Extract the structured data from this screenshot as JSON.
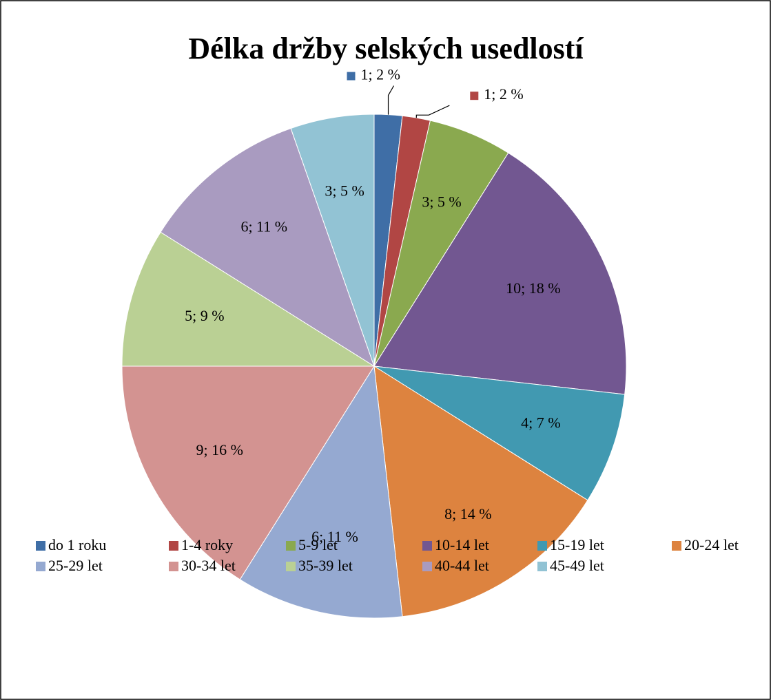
{
  "chart_data": {
    "type": "pie",
    "title": "Délka držby selských usedlostí",
    "categories": [
      "do 1 roku",
      "1-4 roky",
      "5-9 let",
      "10-14 let",
      "15-19 let",
      "20-24 let",
      "25-29 let",
      "30-34 let",
      "35-39 let",
      "40-44 let",
      "45-49 let"
    ],
    "values": [
      1,
      1,
      3,
      10,
      4,
      8,
      6,
      9,
      5,
      6,
      3
    ],
    "value_labels": [
      "1; 2 %",
      "1; 2 %",
      "3; 5 %",
      "10; 18 %",
      "4; 7 %",
      "8; 14 %",
      "6; 11 %",
      "9; 16 %",
      "5; 9 %",
      "6; 11 %",
      "3; 5 %"
    ],
    "colors": [
      "#3f6ea6",
      "#b14644",
      "#8aa94f",
      "#725791",
      "#4199b1",
      "#dd833f",
      "#95a9d1",
      "#d39391",
      "#bad094",
      "#a99bc0",
      "#92c3d4"
    ],
    "legend": "bottom"
  }
}
